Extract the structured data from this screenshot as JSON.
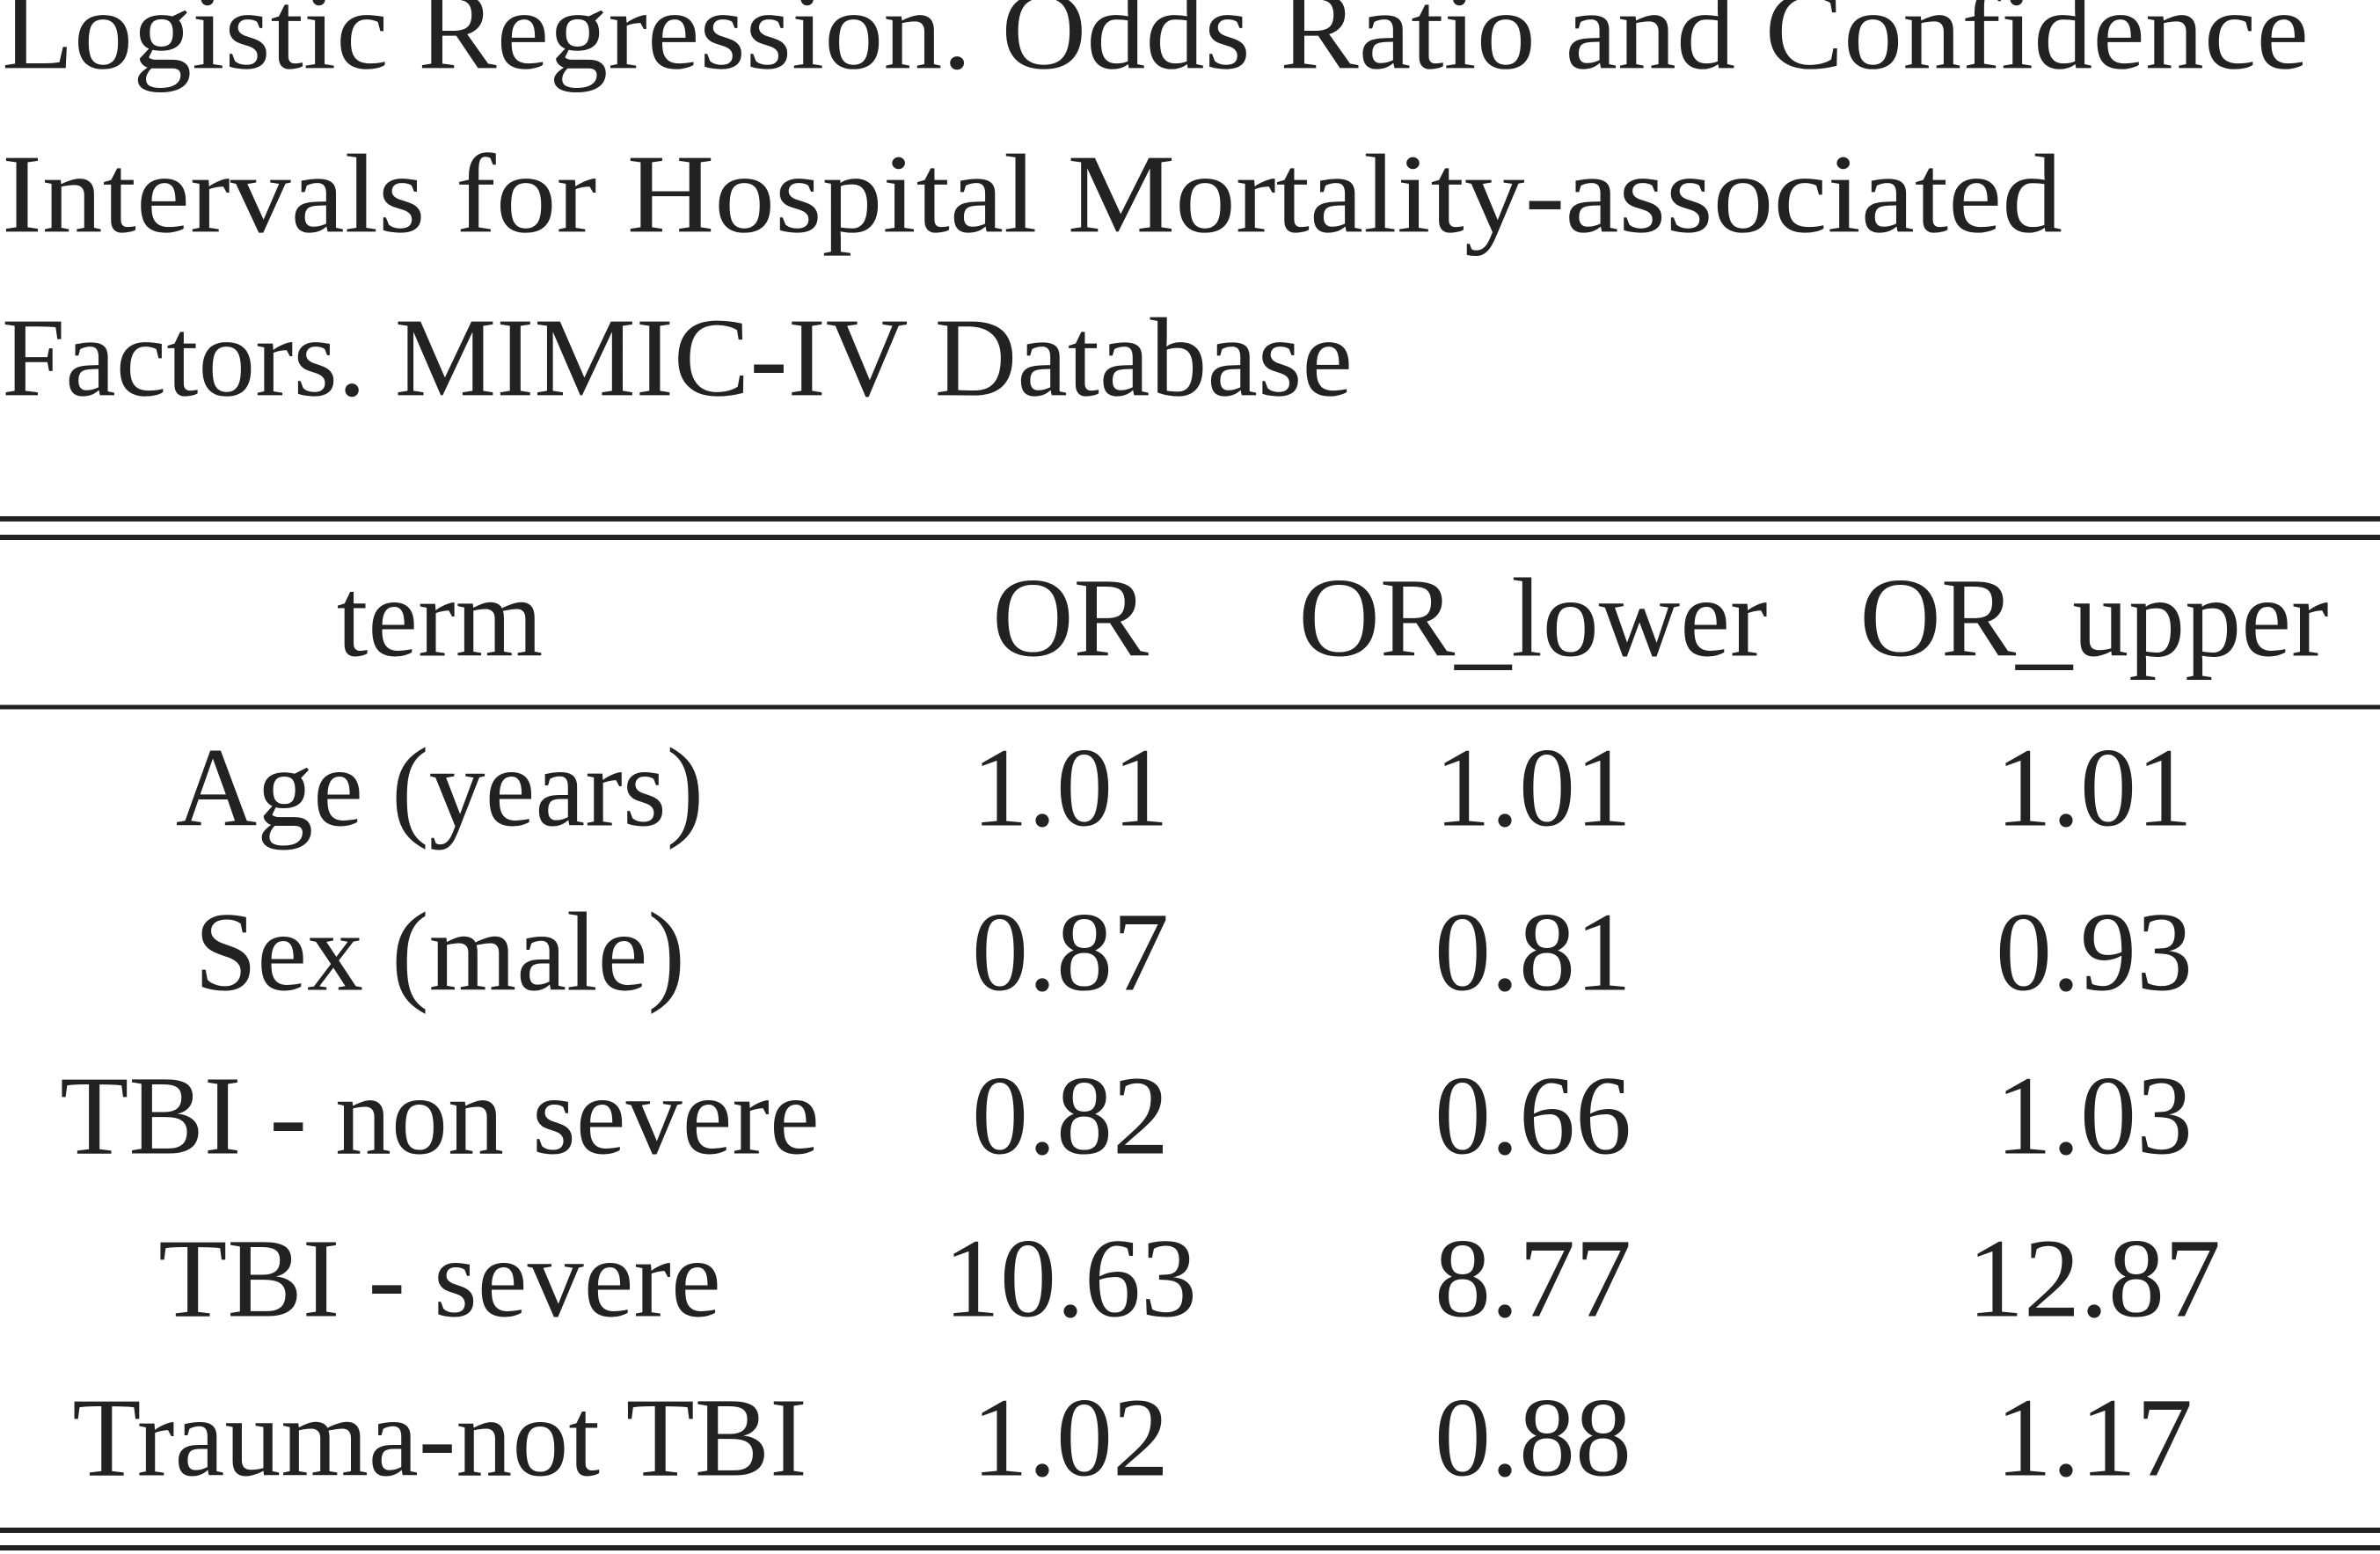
{
  "title_lines": [
    "Logistic Regression. Odds Ratio and Confidence",
    "Intervals for Hospital Mortality-associated",
    "Factors. MIMIC-IV Database"
  ],
  "table": {
    "columns": [
      "term",
      "OR",
      "OR_lower",
      "OR_upper"
    ],
    "rows": [
      [
        "Age (years)",
        1.01,
        1.01,
        1.01
      ],
      [
        "Sex (male)",
        0.87,
        0.81,
        0.93
      ],
      [
        "TBI - non severe",
        0.82,
        0.66,
        1.03
      ],
      [
        "TBI - severe",
        10.63,
        8.77,
        12.87
      ],
      [
        "Trauma-not TBI",
        1.02,
        0.88,
        1.17
      ]
    ]
  }
}
